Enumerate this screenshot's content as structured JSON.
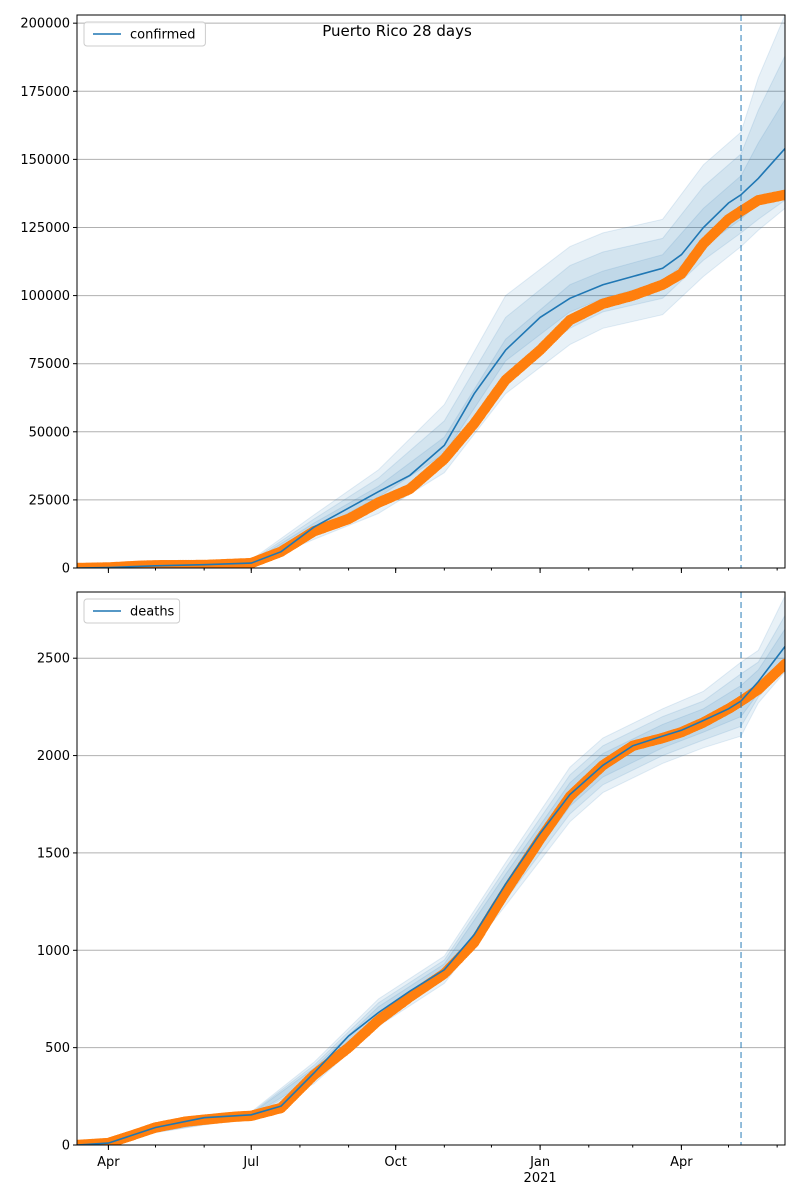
{
  "figure": {
    "title": "Puerto Rico 28 days"
  },
  "colors": {
    "model_line": "#1f77b4",
    "band": "#1f77b4",
    "observed": "#ff7f0e",
    "grid": "#b0b0b0",
    "forecast_marker": "#1f77b4"
  },
  "x_ticks": [
    {
      "date": "2020-04-01",
      "label": "Apr",
      "sublabel": ""
    },
    {
      "date": "2020-07-01",
      "label": "Jul",
      "sublabel": ""
    },
    {
      "date": "2020-10-01",
      "label": "Oct",
      "sublabel": ""
    },
    {
      "date": "2021-01-01",
      "label": "Jan",
      "sublabel": "2021"
    },
    {
      "date": "2021-04-01",
      "label": "Apr",
      "sublabel": ""
    }
  ],
  "chart_data": [
    {
      "type": "line",
      "legend": {
        "entries": [
          "confirmed"
        ],
        "position": "top-left"
      },
      "xlim": [
        "2020-03-12",
        "2021-06-06"
      ],
      "ylim": [
        0,
        203000
      ],
      "y_ticks": [
        0,
        25000,
        50000,
        75000,
        100000,
        125000,
        150000,
        175000,
        200000
      ],
      "grid": "y",
      "forecast_start": "2021-05-09",
      "model": {
        "name": "confirmed",
        "x": [
          "2020-03-12",
          "2020-04-01",
          "2020-05-01",
          "2020-06-01",
          "2020-07-01",
          "2020-07-20",
          "2020-08-10",
          "2020-09-01",
          "2020-09-20",
          "2020-10-10",
          "2020-11-01",
          "2020-11-20",
          "2020-12-10",
          "2021-01-01",
          "2021-01-20",
          "2021-02-10",
          "2021-03-01",
          "2021-03-20",
          "2021-04-01",
          "2021-04-15",
          "2021-05-01",
          "2021-05-09",
          "2021-05-20",
          "2021-06-06"
        ],
        "y": [
          0,
          200,
          800,
          1200,
          1800,
          6000,
          15000,
          22000,
          28000,
          34000,
          45000,
          64000,
          80000,
          92000,
          99000,
          104000,
          107000,
          110000,
          115000,
          125000,
          134000,
          137000,
          143000,
          154000
        ]
      },
      "bands": [
        {
          "x": [
            "2020-03-12",
            "2020-07-01",
            "2020-08-10",
            "2020-09-20",
            "2020-11-01",
            "2020-12-10",
            "2021-01-20",
            "2021-02-10",
            "2021-03-20",
            "2021-04-15",
            "2021-05-09",
            "2021-05-20",
            "2021-06-06"
          ],
          "low": [
            0,
            1400,
            13500,
            26000,
            42000,
            76000,
            94000,
            99000,
            105000,
            118000,
            128000,
            134000,
            138000
          ],
          "high": [
            0,
            2200,
            16500,
            30000,
            48000,
            84000,
            104000,
            109000,
            115000,
            132000,
            144000,
            156000,
            172000
          ]
        },
        {
          "x": [
            "2020-03-12",
            "2020-07-01",
            "2020-08-10",
            "2020-09-20",
            "2020-11-01",
            "2020-12-10",
            "2021-01-20",
            "2021-02-10",
            "2021-03-20",
            "2021-04-15",
            "2021-05-09",
            "2021-05-20",
            "2021-06-06"
          ],
          "low": [
            0,
            1000,
            12000,
            23000,
            38000,
            70000,
            88000,
            94000,
            99000,
            113000,
            123000,
            128000,
            135000
          ],
          "high": [
            0,
            2600,
            18000,
            33000,
            54000,
            92000,
            111000,
            116000,
            121000,
            140000,
            152000,
            168000,
            188000
          ]
        },
        {
          "x": [
            "2020-03-12",
            "2020-07-01",
            "2020-08-10",
            "2020-09-20",
            "2020-11-01",
            "2020-12-10",
            "2021-01-20",
            "2021-02-10",
            "2021-03-20",
            "2021-04-15",
            "2021-05-09",
            "2021-05-20",
            "2021-06-06"
          ],
          "low": [
            0,
            700,
            10500,
            20000,
            35000,
            64000,
            82000,
            88000,
            93000,
            107000,
            118000,
            124000,
            132000
          ],
          "high": [
            0,
            3000,
            19500,
            36000,
            60000,
            100000,
            118000,
            123000,
            128000,
            148000,
            160000,
            180000,
            203000
          ]
        }
      ],
      "observed": {
        "x": [
          "2020-03-12",
          "2020-04-01",
          "2020-04-20",
          "2020-05-01",
          "2020-06-01",
          "2020-07-01",
          "2020-07-20",
          "2020-08-10",
          "2020-09-01",
          "2020-09-20",
          "2020-10-10",
          "2020-11-01",
          "2020-11-20",
          "2020-12-10",
          "2021-01-01",
          "2021-01-20",
          "2021-02-10",
          "2021-03-01",
          "2021-03-20",
          "2021-04-01",
          "2021-04-15",
          "2021-05-01",
          "2021-05-09",
          "2021-05-20",
          "2021-06-06"
        ],
        "y": [
          0,
          200,
          800,
          1000,
          1100,
          1800,
          6000,
          13500,
          18000,
          24000,
          29000,
          40000,
          53000,
          69000,
          80000,
          91000,
          97000,
          100000,
          104000,
          108000,
          119000,
          128000,
          131000,
          135000,
          137000
        ]
      }
    },
    {
      "type": "line",
      "legend": {
        "entries": [
          "deaths"
        ],
        "position": "top-left"
      },
      "xlim": [
        "2020-03-12",
        "2021-06-06"
      ],
      "ylim": [
        0,
        2840
      ],
      "y_ticks": [
        0,
        500,
        1000,
        1500,
        2000,
        2500
      ],
      "grid": "y",
      "forecast_start": "2021-05-09",
      "model": {
        "name": "deaths",
        "x": [
          "2020-03-12",
          "2020-04-01",
          "2020-05-01",
          "2020-06-01",
          "2020-07-01",
          "2020-07-20",
          "2020-08-10",
          "2020-09-01",
          "2020-09-20",
          "2020-10-10",
          "2020-11-01",
          "2020-11-20",
          "2020-12-10",
          "2021-01-01",
          "2021-01-20",
          "2021-02-10",
          "2021-03-01",
          "2021-03-20",
          "2021-04-01",
          "2021-04-15",
          "2021-05-01",
          "2021-05-09",
          "2021-05-20",
          "2021-06-06"
        ],
        "y": [
          0,
          10,
          90,
          140,
          155,
          200,
          370,
          560,
          680,
          790,
          900,
          1080,
          1340,
          1600,
          1800,
          1950,
          2050,
          2100,
          2130,
          2180,
          2240,
          2280,
          2380,
          2560
        ]
      },
      "bands": [
        {
          "x": [
            "2020-03-12",
            "2020-07-01",
            "2020-08-10",
            "2020-09-20",
            "2020-11-01",
            "2020-12-10",
            "2021-01-20",
            "2021-02-10",
            "2021-03-20",
            "2021-04-15",
            "2021-05-09",
            "2021-05-20",
            "2021-06-06"
          ],
          "low": [
            0,
            150,
            345,
            650,
            870,
            1290,
            1740,
            1890,
            2040,
            2120,
            2200,
            2320,
            2470
          ],
          "high": [
            0,
            160,
            395,
            710,
            930,
            1390,
            1860,
            2010,
            2160,
            2240,
            2360,
            2440,
            2650
          ]
        },
        {
          "x": [
            "2020-03-12",
            "2020-07-01",
            "2020-08-10",
            "2020-09-20",
            "2020-11-01",
            "2020-12-10",
            "2021-01-20",
            "2021-02-10",
            "2021-03-20",
            "2021-04-15",
            "2021-05-09",
            "2021-05-20",
            "2021-06-06"
          ],
          "low": [
            0,
            145,
            330,
            630,
            850,
            1260,
            1700,
            1850,
            2000,
            2080,
            2150,
            2300,
            2450
          ],
          "high": [
            0,
            165,
            410,
            730,
            950,
            1420,
            1900,
            2050,
            2200,
            2280,
            2420,
            2480,
            2720
          ]
        },
        {
          "x": [
            "2020-03-12",
            "2020-07-01",
            "2020-08-10",
            "2020-09-20",
            "2020-11-01",
            "2020-12-10",
            "2021-01-20",
            "2021-02-10",
            "2021-03-20",
            "2021-04-15",
            "2021-05-09",
            "2021-05-20",
            "2021-06-06"
          ],
          "low": [
            0,
            140,
            315,
            610,
            830,
            1230,
            1660,
            1810,
            1960,
            2040,
            2100,
            2270,
            2430
          ],
          "high": [
            0,
            170,
            425,
            750,
            970,
            1450,
            1940,
            2090,
            2240,
            2330,
            2480,
            2540,
            2820
          ]
        }
      ],
      "observed": {
        "x": [
          "2020-03-12",
          "2020-04-01",
          "2020-04-20",
          "2020-05-01",
          "2020-05-20",
          "2020-06-01",
          "2020-06-20",
          "2020-07-01",
          "2020-07-20",
          "2020-08-10",
          "2020-09-01",
          "2020-09-20",
          "2020-10-10",
          "2020-11-01",
          "2020-11-20",
          "2020-12-10",
          "2021-01-01",
          "2021-01-20",
          "2021-02-10",
          "2021-03-01",
          "2021-03-20",
          "2021-04-01",
          "2021-04-15",
          "2021-05-01",
          "2021-05-09",
          "2021-05-20",
          "2021-06-06"
        ],
        "y": [
          0,
          10,
          60,
          90,
          120,
          130,
          145,
          150,
          190,
          360,
          500,
          640,
          760,
          880,
          1040,
          1300,
          1570,
          1790,
          1950,
          2050,
          2090,
          2120,
          2170,
          2240,
          2280,
          2340,
          2470
        ]
      }
    }
  ]
}
